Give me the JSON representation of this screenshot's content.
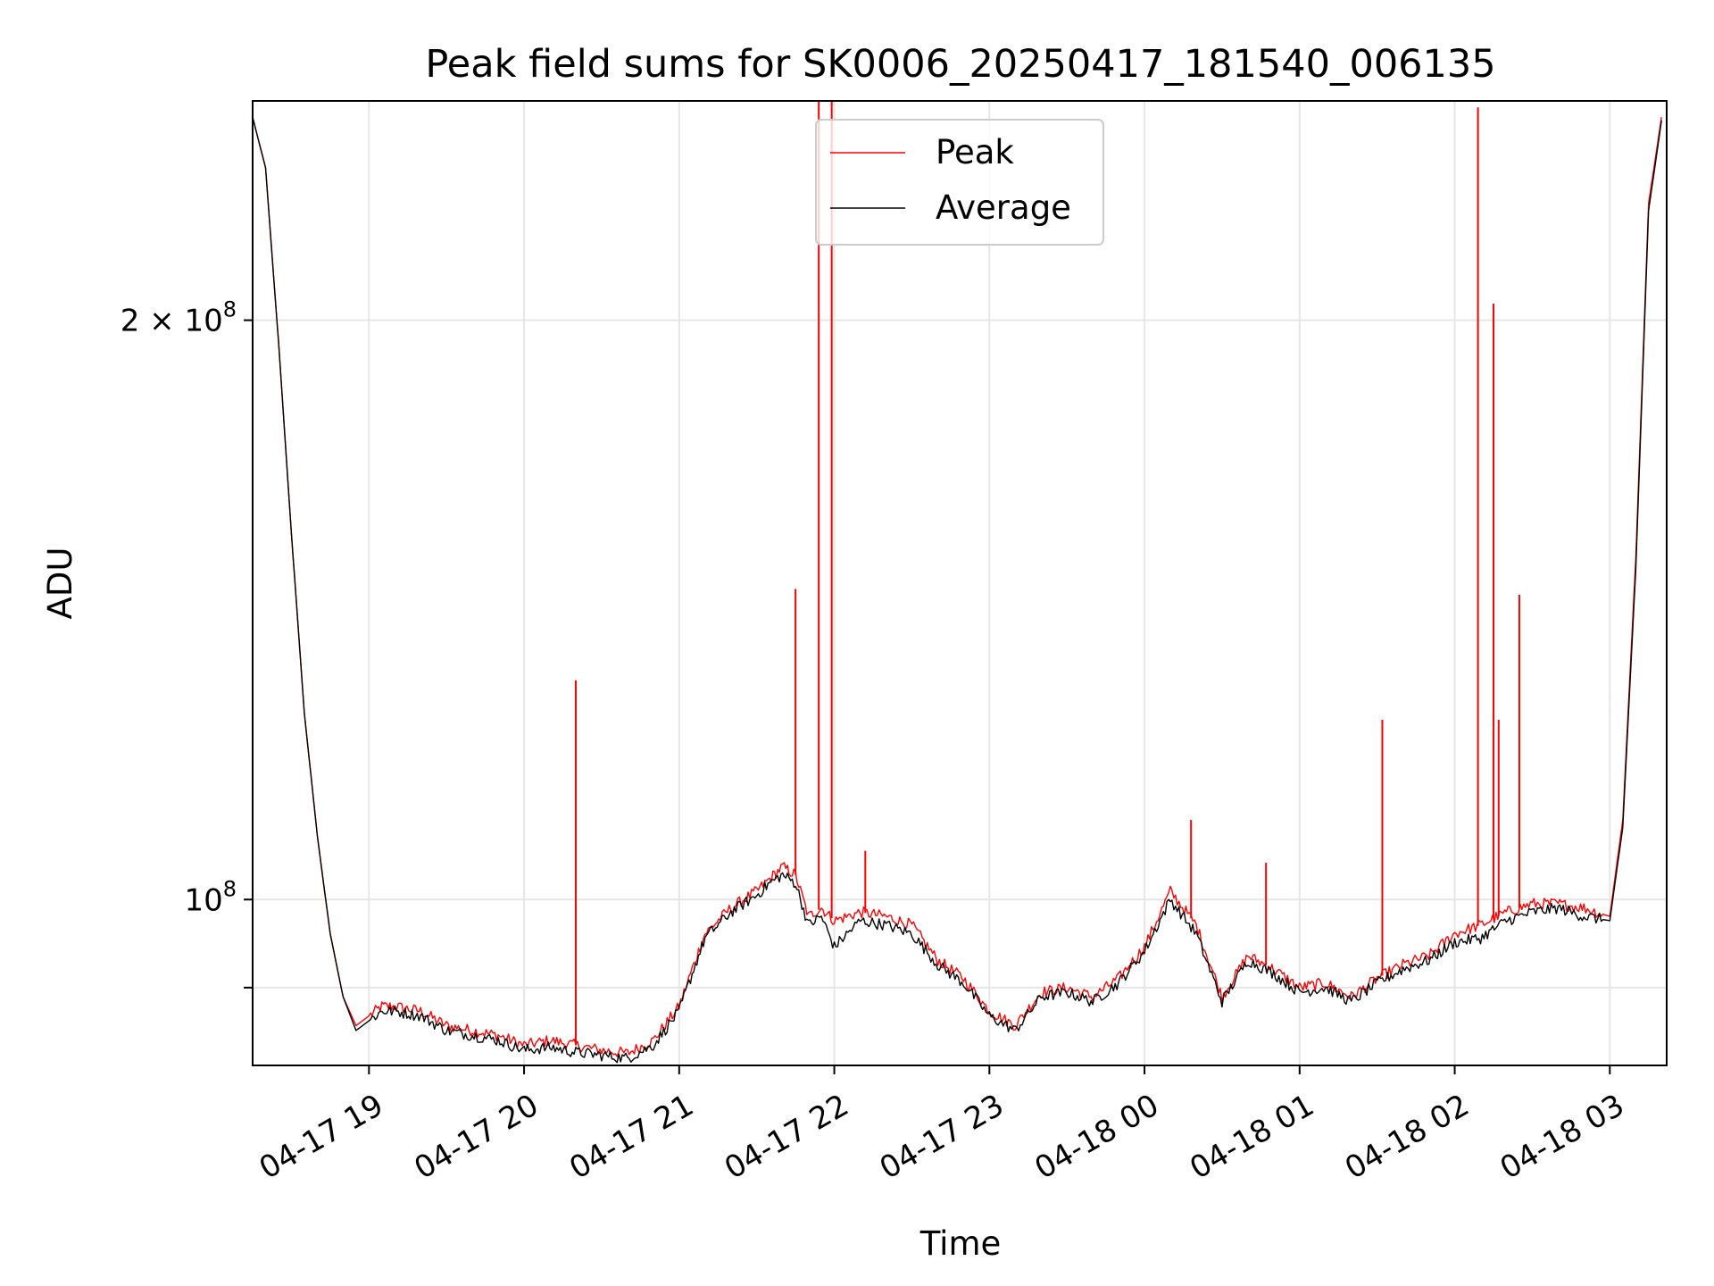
{
  "chart_data": {
    "type": "line",
    "title": "Peak field sums for SK0006_20250417_181540_006135",
    "xlabel": "Time",
    "ylabel": "ADU",
    "y_scale": "log",
    "ylim": [
      82000000,
      260000000
    ],
    "xlim": [
      "04-17 18:15",
      "04-18 03:22"
    ],
    "grid": true,
    "legend_position": "top-center",
    "x_ticks": [
      "04-17 19",
      "04-17 20",
      "04-17 21",
      "04-17 22",
      "04-17 23",
      "04-18 00",
      "04-18 01",
      "04-18 02",
      "04-18 03"
    ],
    "y_ticks": [
      {
        "value": 200000000,
        "label_base": "2 × 10",
        "label_exp": "8"
      },
      {
        "value": 100000000,
        "label_base": "10",
        "label_exp": "8"
      },
      {
        "value": 90000000,
        "label_base": "",
        "label_exp": ""
      }
    ],
    "x": [
      "04-17 18:15",
      "04-17 18:20",
      "04-17 18:25",
      "04-17 18:30",
      "04-17 18:35",
      "04-17 18:40",
      "04-17 18:45",
      "04-17 18:50",
      "04-17 18:55",
      "04-17 19:00",
      "04-17 19:05",
      "04-17 19:10",
      "04-17 19:20",
      "04-17 19:30",
      "04-17 19:40",
      "04-17 19:50",
      "04-17 20:00",
      "04-17 20:10",
      "04-17 20:20",
      "04-17 20:30",
      "04-17 20:40",
      "04-17 20:50",
      "04-17 21:00",
      "04-17 21:05",
      "04-17 21:10",
      "04-17 21:20",
      "04-17 21:30",
      "04-17 21:35",
      "04-17 21:40",
      "04-17 21:45",
      "04-17 21:50",
      "04-17 21:55",
      "04-17 22:00",
      "04-17 22:10",
      "04-17 22:20",
      "04-17 22:30",
      "04-17 22:40",
      "04-17 22:50",
      "04-17 23:00",
      "04-17 23:10",
      "04-17 23:20",
      "04-17 23:30",
      "04-17 23:40",
      "04-17 23:50",
      "04-18 00:00",
      "04-18 00:10",
      "04-18 00:20",
      "04-18 00:30",
      "04-18 00:40",
      "04-18 00:50",
      "04-18 01:00",
      "04-18 01:10",
      "04-18 01:20",
      "04-18 01:30",
      "04-18 01:40",
      "04-18 01:50",
      "04-18 02:00",
      "04-18 02:10",
      "04-18 02:20",
      "04-18 02:30",
      "04-18 02:40",
      "04-18 02:50",
      "04-18 03:00",
      "04-18 03:05",
      "04-18 03:10",
      "04-18 03:15",
      "04-18 03:20"
    ],
    "series": [
      {
        "name": "Peak",
        "color": "#ff0000",
        "values": [
          255000000,
          240000000,
          195000000,
          155000000,
          125000000,
          108000000,
          96000000,
          89000000,
          86000000,
          87000000,
          88000000,
          88000000,
          87500000,
          86000000,
          85500000,
          85000000,
          84000000,
          84500000,
          84000000,
          83500000,
          83200000,
          84500000,
          88000000,
          92000000,
          96000000,
          99000000,
          101000000,
          102500000,
          104000000,
          103000000,
          98000000,
          99000000,
          97500000,
          98500000,
          98000000,
          97000000,
          93000000,
          91000000,
          87500000,
          86000000,
          89500000,
          90000000,
          89000000,
          91000000,
          94500000,
          101000000,
          97000000,
          89000000,
          93500000,
          92000000,
          90000000,
          90500000,
          89000000,
          91000000,
          92500000,
          93500000,
          96000000,
          97000000,
          98500000,
          99500000,
          99500000,
          99000000,
          98000000,
          110000000,
          150000000,
          230000000,
          255000000
        ]
      },
      {
        "name": "Average",
        "color": "#000000",
        "values": [
          255000000,
          240000000,
          195000000,
          155000000,
          125000000,
          108000000,
          96000000,
          89000000,
          85500000,
          86500000,
          87500000,
          87500000,
          87000000,
          85500000,
          85000000,
          84500000,
          83500000,
          83800000,
          83300000,
          83000000,
          82700000,
          84000000,
          87500000,
          91500000,
          95500000,
          98500000,
          100500000,
          102000000,
          103000000,
          102000000,
          97000000,
          98000000,
          94500000,
          97500000,
          97000000,
          96000000,
          92500000,
          90500000,
          87000000,
          85500000,
          89000000,
          89500000,
          88500000,
          90500000,
          94000000,
          100000000,
          96000000,
          88500000,
          93000000,
          91500000,
          89500000,
          90000000,
          88500000,
          90500000,
          92000000,
          93000000,
          95000000,
          95500000,
          97500000,
          98500000,
          99000000,
          98000000,
          97500000,
          109000000,
          148000000,
          228000000,
          254000000
        ]
      }
    ],
    "spikes": [
      {
        "x": "04-17 20:20",
        "y": 130000000
      },
      {
        "x": "04-17 21:45",
        "y": 145000000
      },
      {
        "x": "04-17 21:54",
        "y": 260000000
      },
      {
        "x": "04-17 21:59",
        "y": 260000000
      },
      {
        "x": "04-17 22:12",
        "y": 106000000
      },
      {
        "x": "04-18 00:18",
        "y": 110000000
      },
      {
        "x": "04-18 00:47",
        "y": 104500000
      },
      {
        "x": "04-18 01:32",
        "y": 124000000
      },
      {
        "x": "04-18 02:09",
        "y": 258000000
      },
      {
        "x": "04-18 02:15",
        "y": 204000000
      },
      {
        "x": "04-18 02:17",
        "y": 124000000
      },
      {
        "x": "04-18 02:25",
        "y": 144000000
      }
    ]
  }
}
